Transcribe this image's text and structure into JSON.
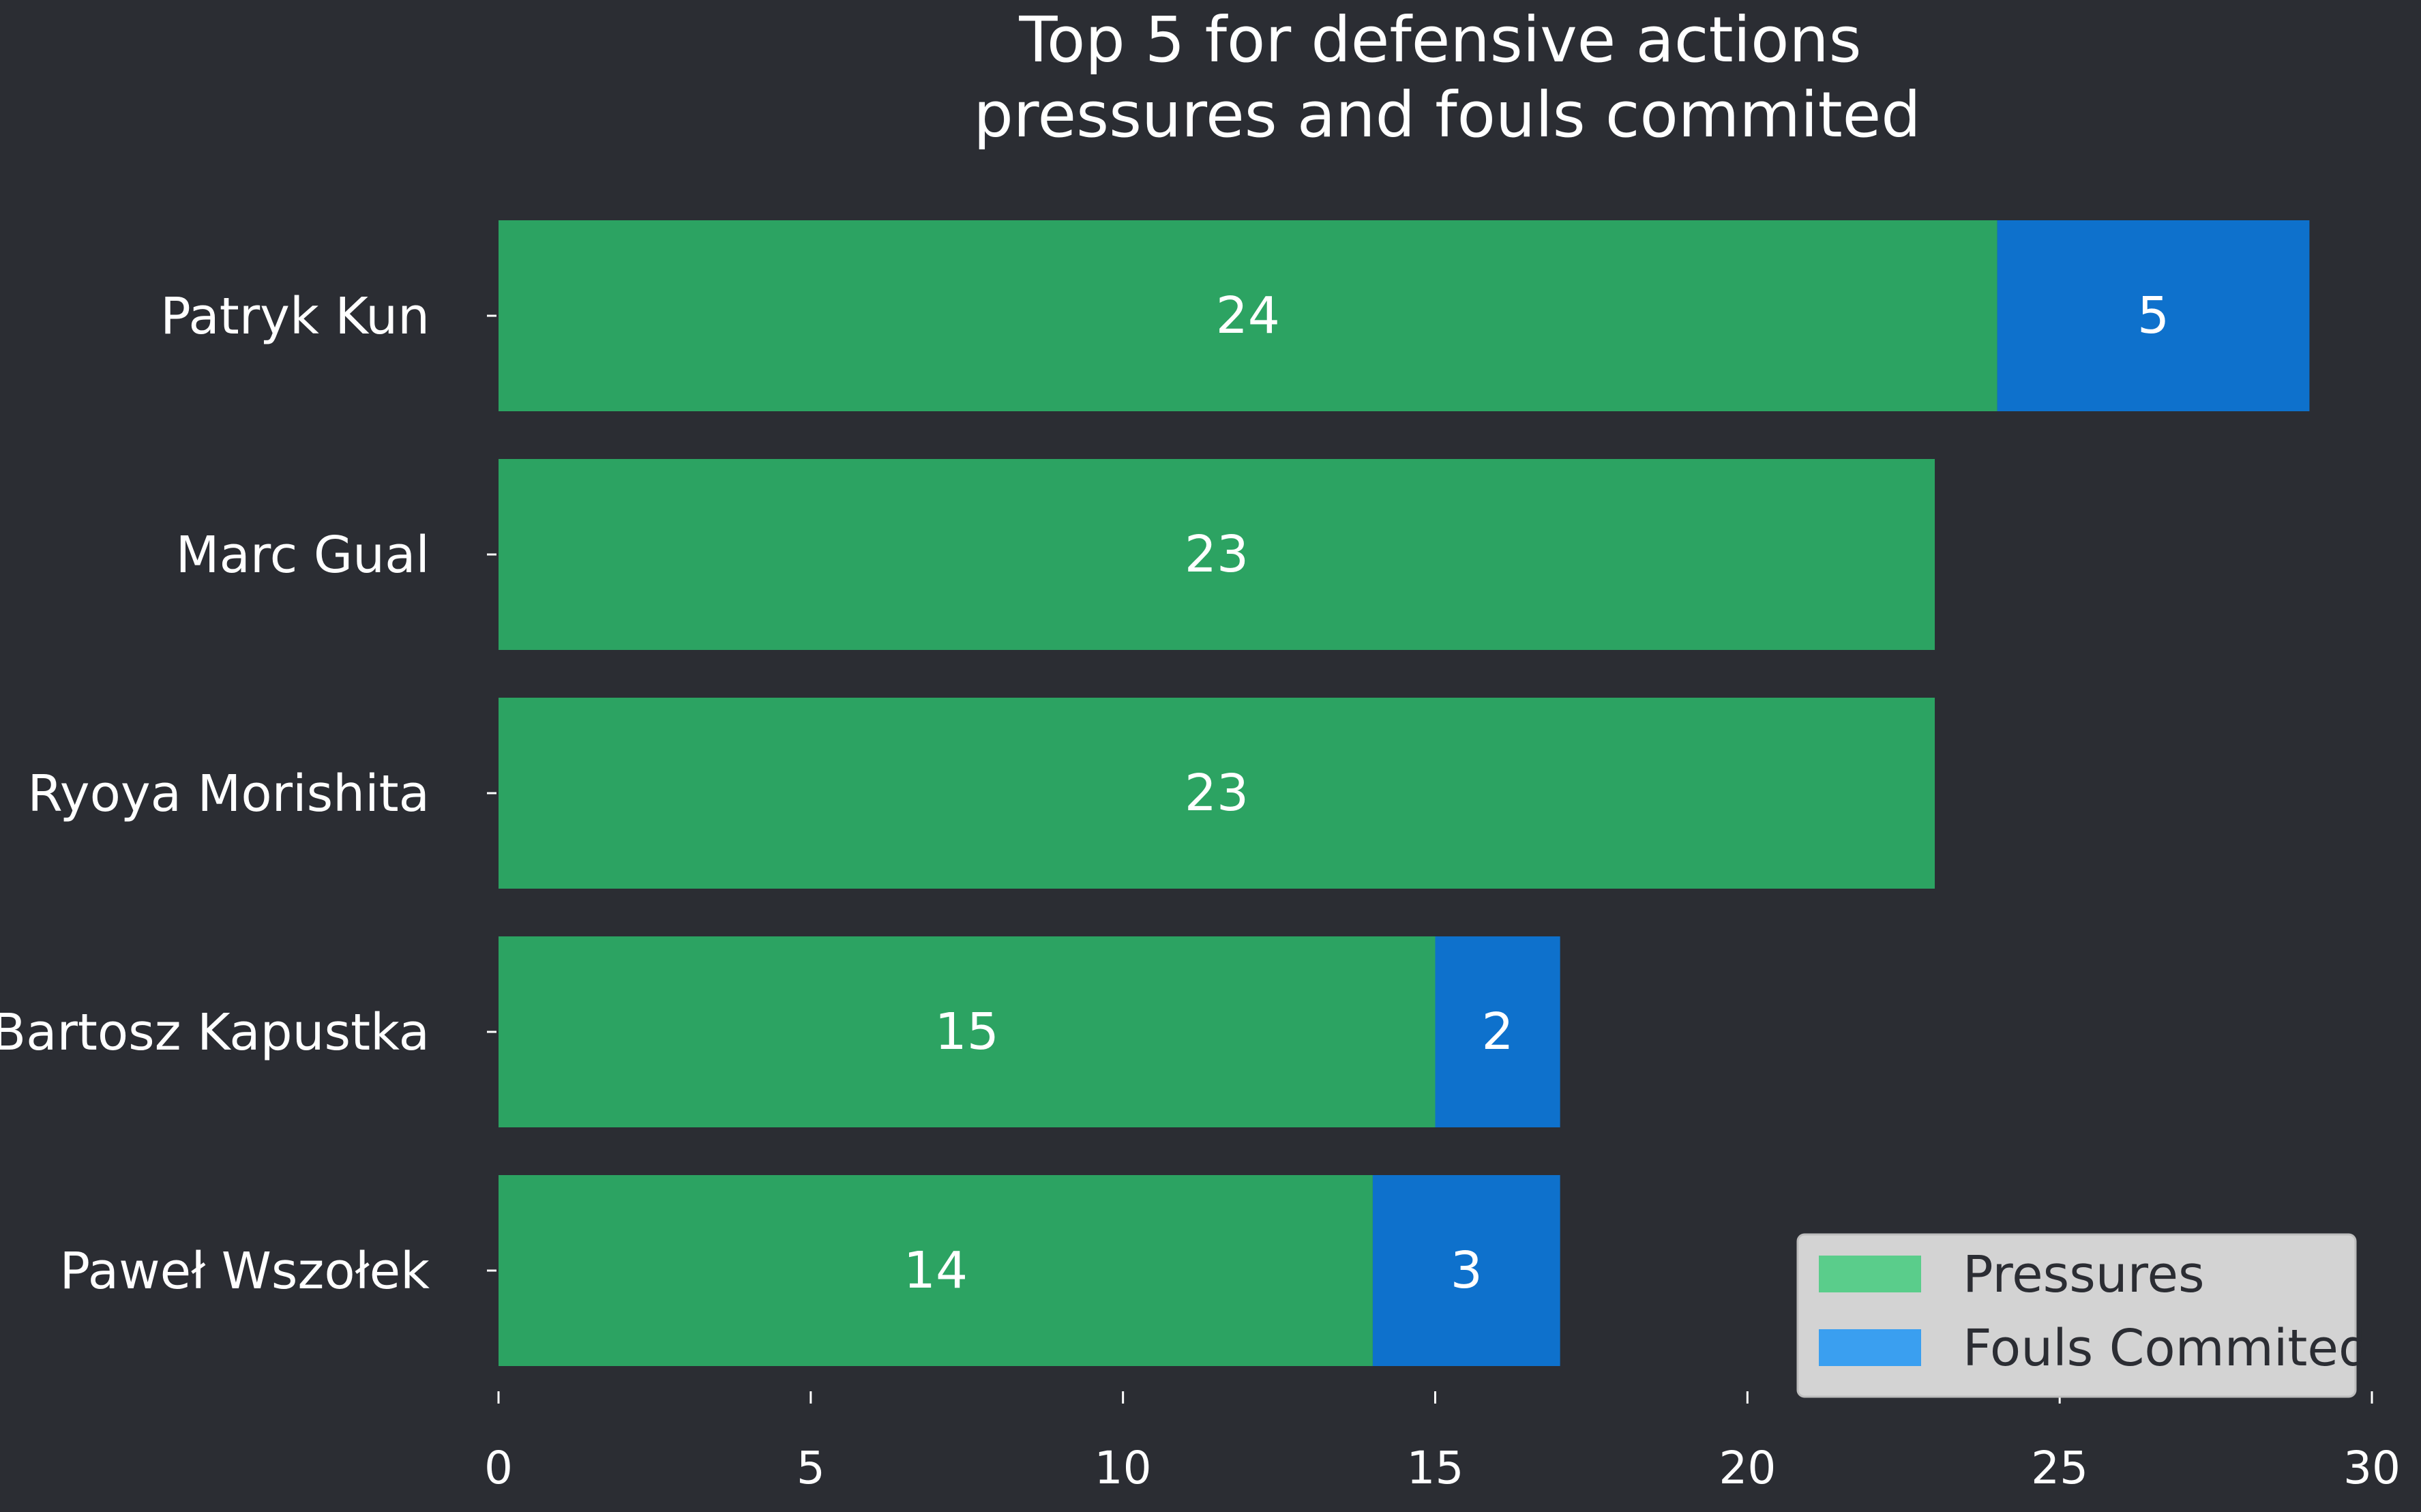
{
  "chart_data": {
    "type": "bar",
    "orientation": "horizontal",
    "stacked": true,
    "title": "Top 5 for defensive actions\npressures and fouls commited",
    "categories": [
      "Patryk Kun",
      "Marc Gual",
      "Ryoya Morishita",
      "Bartosz Kapustka",
      "Paweł Wszołek"
    ],
    "series": [
      {
        "name": "Pressures",
        "values": [
          24,
          23,
          23,
          15,
          14
        ],
        "bar_color": "#2ca362",
        "legend_color": "#5acd8b"
      },
      {
        "name": "Fouls Commited",
        "values": [
          5,
          0,
          0,
          2,
          3
        ],
        "bar_color": "#0e71cc",
        "legend_color": "#3a9ff0"
      }
    ],
    "data_labels": [
      [
        "24",
        "23",
        "23",
        "15",
        "14"
      ],
      [
        "5",
        "",
        "",
        "2",
        "3"
      ]
    ],
    "xlim": [
      0,
      30
    ],
    "xticks": [
      "0",
      "5",
      "10",
      "15",
      "20",
      "25",
      "30"
    ],
    "xlabel": "",
    "ylabel": "",
    "grid": false,
    "legend_position": "lower-right"
  },
  "colors": {
    "background": "#2b2d33",
    "text": "#ffffff",
    "legend_bg": "#d3d3d3",
    "legend_text": "#2b2d33"
  }
}
